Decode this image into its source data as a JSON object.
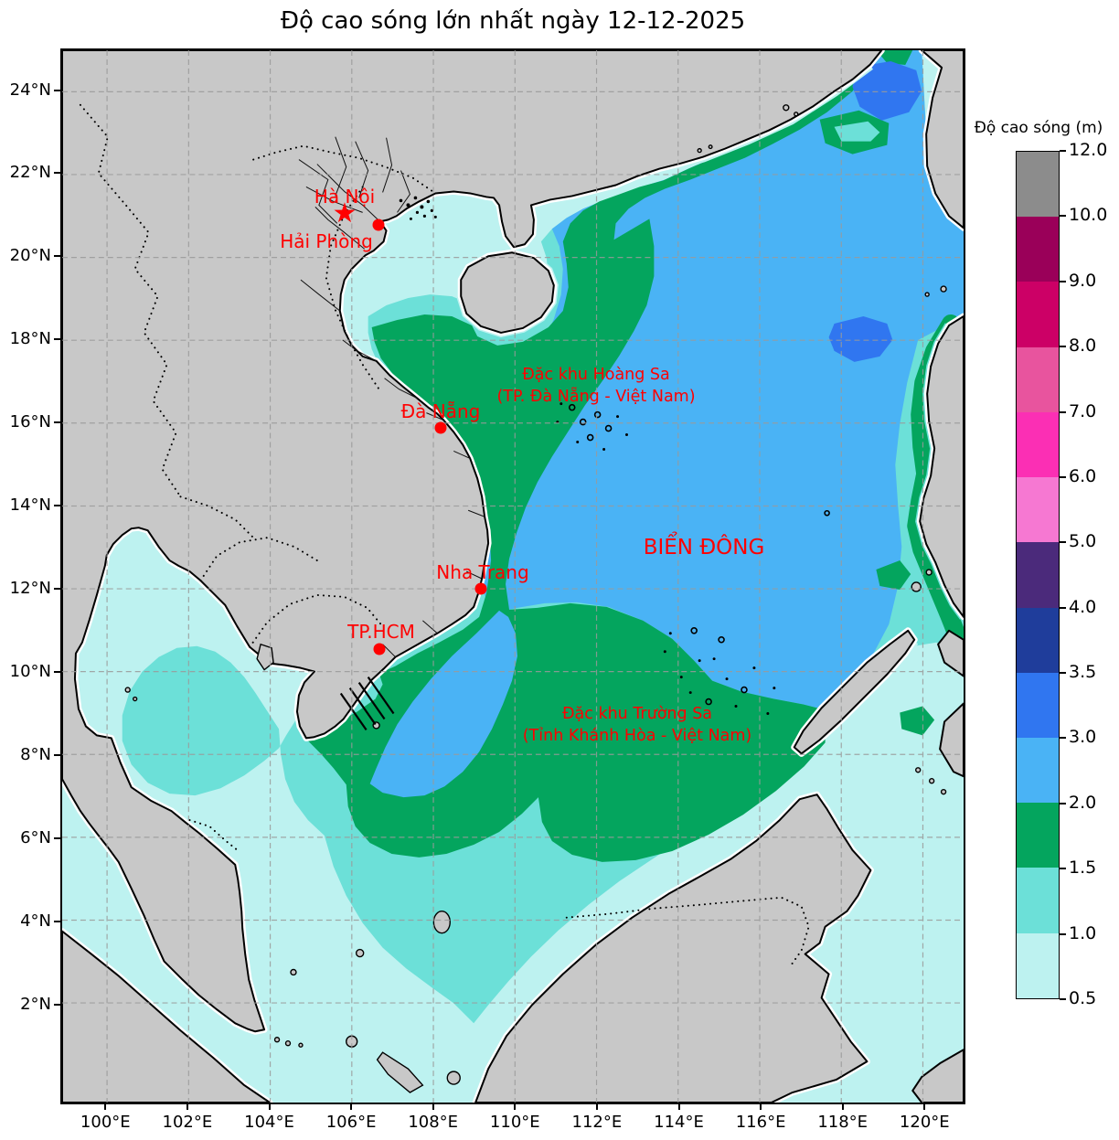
{
  "title": "Độ cao sóng lớn nhất ngày 12-12-2025",
  "map": {
    "xticks": [
      "100°E",
      "102°E",
      "104°E",
      "106°E",
      "108°E",
      "110°E",
      "112°E",
      "114°E",
      "116°E",
      "118°E",
      "120°E"
    ],
    "yticks": [
      "24°N",
      "22°N",
      "20°N",
      "18°N",
      "16°N",
      "14°N",
      "12°N",
      "10°N",
      "8°N",
      "6°N",
      "4°N",
      "2°N"
    ],
    "sea_label": "BIỂN ĐÔNG",
    "cities": [
      {
        "name": "Hà Nội",
        "marker": "star"
      },
      {
        "name": "Hải Phòng",
        "marker": "dot"
      },
      {
        "name": "Đà Nẵng",
        "marker": "dot"
      },
      {
        "name": "Nha Trang",
        "marker": "dot"
      },
      {
        "name": "TP.HCM",
        "marker": "dot"
      }
    ],
    "annotations": [
      {
        "line1": "Đặc khu Hoàng Sa",
        "line2": "(TP. Đà Nẵng - Việt Nam)"
      },
      {
        "line1": "Đặc khu Trường Sa",
        "line2": "(Tỉnh Khánh Hòa - Việt Nam)"
      }
    ]
  },
  "colorbar": {
    "title": "Độ cao sóng (m)",
    "tick_labels": [
      "12.0",
      "10.0",
      "9.0",
      "8.0",
      "7.0",
      "6.0",
      "5.0",
      "4.0",
      "3.5",
      "3.0",
      "2.0",
      "1.5",
      "1.0",
      "0.5"
    ],
    "levels_m": [
      0.5,
      1.0,
      1.5,
      2.0,
      3.0,
      3.5,
      4.0,
      5.0,
      6.0,
      7.0,
      8.0,
      9.0,
      10.0,
      12.0
    ],
    "segment_colors_top_to_bottom": [
      "#8c8c8c",
      "#9a0059",
      "#cc0066",
      "#e8549e",
      "#fb2fb4",
      "#f678d2",
      "#4b2a7b",
      "#1f3d9b",
      "#3076f0",
      "#4ab3f5",
      "#04a55e",
      "#6ce0d8",
      "#bdf2f0"
    ]
  },
  "band_colors": {
    "wave_0_5_to_1": "#bdf2f0",
    "wave_1_to_1_5": "#6ce0d8",
    "wave_1_5_to_2": "#04a55e",
    "wave_2_to_3": "#4ab3f5",
    "wave_3_to_3_5": "#3076f0",
    "land": "#c8c8c8",
    "city_marker": "#ff0000"
  }
}
